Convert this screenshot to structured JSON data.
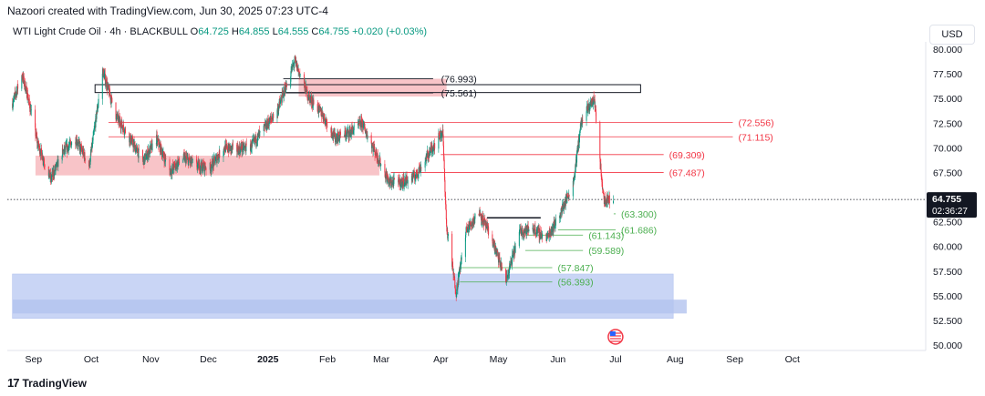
{
  "header": {
    "credit": "Nazoori created with TradingView.com, Jun 30, 2025 07:23 UTC-4"
  },
  "legend": {
    "symbol": "WTI Light Crude Oil · 4h · BLACKBULL",
    "open_label": "O",
    "open": "64.725",
    "high_label": "H",
    "high": "64.855",
    "low_label": "L",
    "low": "64.555",
    "close_label": "C",
    "close": "64.755",
    "change": "+0.020 (+0.03%)"
  },
  "currency": "USD",
  "footer": {
    "brand": "TradingView",
    "logo_glyph": "17"
  },
  "colors": {
    "up": "#089981",
    "down": "#f23645",
    "resistance": "#f23645",
    "support": "#4caf50",
    "resistance_zone": "#f8c4c8",
    "support_zone": "#c9d5f5",
    "support_zone_dark": "#b3c3ef"
  },
  "chart_data": {
    "type": "candlestick",
    "instrument": "WTI Light Crude Oil",
    "timeframe": "4h",
    "ylim": [
      50,
      81
    ],
    "y_ticks": [
      "80.000",
      "77.500",
      "75.000",
      "72.500",
      "70.000",
      "67.500",
      "65.000",
      "62.500",
      "60.000",
      "57.500",
      "55.000",
      "52.500",
      "50.000"
    ],
    "x_ticks": [
      "Sep",
      "Oct",
      "Nov",
      "Dec",
      "2025",
      "Feb",
      "Mar",
      "Apr",
      "May",
      "Jun",
      "Jul",
      "Aug",
      "Sep",
      "Oct"
    ],
    "last_price": "64.755",
    "countdown": "02:36:27",
    "price_path": [
      [
        "2024-08-21",
        74.5
      ],
      [
        "2024-08-26",
        77.4
      ],
      [
        "2024-08-29",
        75.2
      ],
      [
        "2024-09-03",
        70.5
      ],
      [
        "2024-09-10",
        66.8
      ],
      [
        "2024-09-16",
        69.5
      ],
      [
        "2024-09-23",
        70.9
      ],
      [
        "2024-09-30",
        68.2
      ],
      [
        "2024-10-07",
        77.8
      ],
      [
        "2024-10-14",
        73.2
      ],
      [
        "2024-10-21",
        71.0
      ],
      [
        "2024-10-28",
        68.6
      ],
      [
        "2024-11-04",
        70.9
      ],
      [
        "2024-11-11",
        67.6
      ],
      [
        "2024-11-18",
        69.0
      ],
      [
        "2024-11-25",
        68.2
      ],
      [
        "2024-12-02",
        68.0
      ],
      [
        "2024-12-09",
        70.0
      ],
      [
        "2024-12-16",
        69.8
      ],
      [
        "2024-12-23",
        70.1
      ],
      [
        "2025-01-06",
        73.8
      ],
      [
        "2025-01-15",
        78.8
      ],
      [
        "2025-01-22",
        75.2
      ],
      [
        "2025-01-29",
        73.5
      ],
      [
        "2025-02-05",
        71.0
      ],
      [
        "2025-02-12",
        71.5
      ],
      [
        "2025-02-19",
        72.5
      ],
      [
        "2025-02-26",
        69.5
      ],
      [
        "2025-03-05",
        66.5
      ],
      [
        "2025-03-12",
        66.5
      ],
      [
        "2025-03-19",
        67.2
      ],
      [
        "2025-03-26",
        69.5
      ],
      [
        "2025-04-02",
        71.7
      ],
      [
        "2025-04-04",
        61.9
      ],
      [
        "2025-04-09",
        55.3
      ],
      [
        "2025-04-14",
        61.5
      ],
      [
        "2025-04-21",
        63.5
      ],
      [
        "2025-04-28",
        60.5
      ],
      [
        "2025-05-05",
        56.5
      ],
      [
        "2025-05-12",
        61.5
      ],
      [
        "2025-05-19",
        61.8
      ],
      [
        "2025-05-26",
        60.8
      ],
      [
        "2025-06-02",
        63.2
      ],
      [
        "2025-06-09",
        66.5
      ],
      [
        "2025-06-13",
        72.5
      ],
      [
        "2025-06-18",
        74.5
      ],
      [
        "2025-06-20",
        74.9
      ],
      [
        "2025-06-23",
        68.2
      ],
      [
        "2025-06-25",
        64.8
      ],
      [
        "2025-06-30",
        64.755
      ]
    ],
    "resistance_zone": {
      "from": "2024-09-02",
      "to": "2025-02-28",
      "y_low": 67.2,
      "y_high": 69.2
    },
    "resistance_zone_top": {
      "from": "2025-01-17",
      "to": "2025-04-04",
      "y_low": 75.2,
      "y_high": 77.0
    },
    "support_zone": {
      "from": "2024-08-21",
      "to": "2025-07-31",
      "y_low": 52.7,
      "y_high": 57.2
    },
    "box": {
      "from": "2024-10-03",
      "to": "2025-07-14",
      "y_low": 75.6,
      "y_high": 76.4
    },
    "resistance_levels": [
      {
        "label": "(76.993)",
        "value": 76.993,
        "from": "2025-01-09",
        "to": "2025-03-28"
      },
      {
        "label": "(75.561)",
        "value": 75.561,
        "from": "2025-01-09",
        "to": "2025-03-28"
      },
      {
        "label": "(72.556)",
        "value": 72.556,
        "from": "2024-10-10",
        "to": "2025-08-31"
      },
      {
        "label": "(71.115)",
        "value": 71.115,
        "from": "2024-10-10",
        "to": "2025-08-31"
      },
      {
        "label": "(69.309)",
        "value": 69.309,
        "from": "2025-04-01",
        "to": "2025-07-26"
      },
      {
        "label": "(67.487)",
        "value": 67.487,
        "from": "2025-03-06",
        "to": "2025-07-26"
      }
    ],
    "support_levels": [
      {
        "label": "(63.300)",
        "value": 63.3,
        "from": "2025-06-30",
        "to": "2025-07-01"
      },
      {
        "label": "(61.686)",
        "value": 61.686,
        "from": "2025-06-01",
        "to": "2025-07-01"
      },
      {
        "label": "(61.143)",
        "value": 61.143,
        "from": "2025-05-15",
        "to": "2025-06-14"
      },
      {
        "label": "(59.589)",
        "value": 59.589,
        "from": "2025-05-15",
        "to": "2025-06-14"
      },
      {
        "label": "(57.847)",
        "value": 57.847,
        "from": "2025-04-11",
        "to": "2025-05-29"
      },
      {
        "label": "(56.393)",
        "value": 56.393,
        "from": "2025-04-11",
        "to": "2025-05-29"
      }
    ],
    "range_box": {
      "from": "2025-04-25",
      "to": "2025-05-23",
      "value": 62.9
    }
  }
}
